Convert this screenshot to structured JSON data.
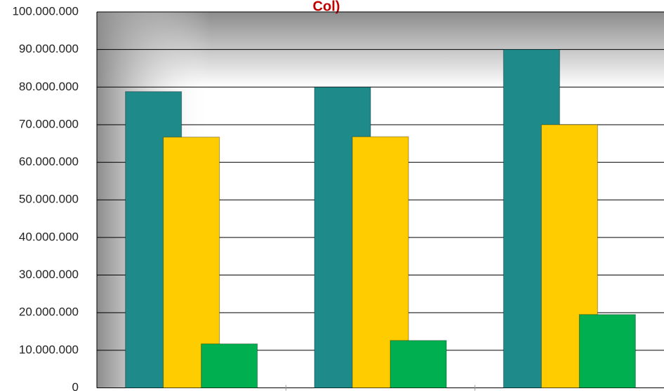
{
  "chart_data": {
    "type": "bar",
    "title": "Col)",
    "categories": [
      null,
      null,
      null
    ],
    "series": [
      {
        "color": "#1f8a8a",
        "values": [
          78800000,
          80000000,
          90000000
        ]
      },
      {
        "color": "#ffcc00",
        "values": [
          66700000,
          66800000,
          70000000
        ]
      },
      {
        "color": "#00b050",
        "values": [
          11700000,
          12600000,
          19500000
        ]
      }
    ],
    "ylim": [
      0,
      100000000
    ],
    "yticks": [
      0,
      {
        "value": 10000000,
        "label": "10.000.000"
      },
      {
        "value": 20000000,
        "label": "20.000.000"
      },
      {
        "value": 30000000,
        "label": "30.000.000"
      },
      {
        "value": 40000000,
        "label": "40.000.000"
      },
      {
        "value": 50000000,
        "label": "50.000.000"
      },
      {
        "value": 60000000,
        "label": "60.000.000"
      },
      {
        "value": 70000000,
        "label": "70.000.000"
      },
      {
        "value": 80000000,
        "label": "80.000.000"
      },
      {
        "value": 90000000,
        "label": "90.000.000"
      },
      {
        "value": 100000000,
        "label": "100.000.000"
      }
    ],
    "grid": true
  }
}
